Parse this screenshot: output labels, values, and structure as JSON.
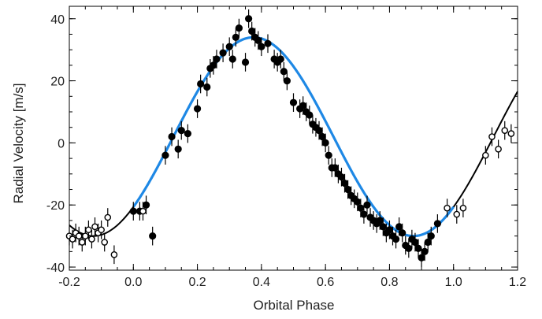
{
  "chart_data": {
    "type": "scatter",
    "xlabel": "Orbital Phase",
    "ylabel": "Radial Velocity [m/s]",
    "xlim": [
      -0.2,
      1.2
    ],
    "ylim": [
      -41,
      44
    ],
    "xticks": [
      -0.2,
      0.0,
      0.2,
      0.4,
      0.6,
      0.8,
      1.0,
      1.2
    ],
    "xtick_labels": [
      "-0.2",
      "0.0",
      "0.2",
      "0.4",
      "0.6",
      "0.8",
      "1.0",
      "1.2"
    ],
    "yticks": [
      -40,
      -20,
      0,
      20,
      40
    ],
    "ytick_labels": [
      "-40",
      "-20",
      "0",
      "20",
      "40"
    ],
    "grid": false,
    "legend": "none",
    "colors": {
      "primary_fit": "#1e88e5",
      "extended_fit": "#000000",
      "points": "#000000"
    },
    "fit_curve": {
      "amplitude": 32,
      "offset": 2,
      "period": 1.0,
      "peak_phase": 0.375,
      "x_range_primary": [
        0.0,
        1.0
      ],
      "x_range_extended": [
        -0.2,
        1.2
      ]
    },
    "series": [
      {
        "marker": "filled-circle",
        "errorbar": 3,
        "x": [
          0.0,
          0.02,
          0.04,
          0.06,
          0.1,
          0.12,
          0.14,
          0.15,
          0.17,
          0.2,
          0.21,
          0.23,
          0.24,
          0.25,
          0.26,
          0.28,
          0.3,
          0.31,
          0.32,
          0.33,
          0.35,
          0.36,
          0.37,
          0.38,
          0.39,
          0.4,
          0.42,
          0.44,
          0.45,
          0.46,
          0.47,
          0.48,
          0.5,
          0.52,
          0.53,
          0.54,
          0.55,
          0.56,
          0.57,
          0.58,
          0.59,
          0.6,
          0.61,
          0.62,
          0.63,
          0.64,
          0.65,
          0.66,
          0.67,
          0.68,
          0.69,
          0.7,
          0.71,
          0.72,
          0.73,
          0.74,
          0.75,
          0.76,
          0.77,
          0.78,
          0.79,
          0.8,
          0.81,
          0.82,
          0.83,
          0.84,
          0.85,
          0.86,
          0.87,
          0.88,
          0.89,
          0.9,
          0.91,
          0.92,
          0.93,
          0.95
        ],
        "y": [
          -22,
          -22,
          -20,
          -30,
          -4,
          2,
          -2,
          4,
          3,
          11,
          19,
          18,
          24,
          25,
          27,
          29,
          31,
          27,
          34,
          37,
          26,
          40,
          36,
          34,
          33,
          31,
          32,
          27,
          26,
          27,
          23,
          20,
          13,
          11,
          12,
          10,
          9,
          6,
          5,
          4,
          2,
          0,
          -4,
          -8,
          -8,
          -10,
          -11,
          -13,
          -15,
          -17,
          -18,
          -19,
          -21,
          -23,
          -20,
          -24,
          -25,
          -26,
          -25,
          -27,
          -29,
          -28,
          -30,
          -31,
          -27,
          -29,
          -33,
          -34,
          -31,
          -32,
          -34,
          -37,
          -35,
          -32,
          -30,
          -26
        ]
      },
      {
        "marker": "open-circle",
        "errorbar": 3,
        "x": [
          -0.2,
          -0.19,
          -0.18,
          -0.17,
          -0.16,
          -0.15,
          -0.14,
          -0.13,
          -0.12,
          -0.11,
          -0.1,
          -0.09,
          -0.08,
          -0.06,
          0.03,
          0.98,
          1.01,
          1.03,
          1.1,
          1.12,
          1.14,
          1.16,
          1.18
        ],
        "y": [
          -30,
          -31,
          -29,
          -30,
          -32,
          -30,
          -28,
          -31,
          -27,
          -29,
          -28,
          -32,
          -24,
          -36,
          -22,
          -21,
          -23,
          -21,
          -4,
          2,
          -2,
          4,
          3
        ]
      }
    ]
  }
}
